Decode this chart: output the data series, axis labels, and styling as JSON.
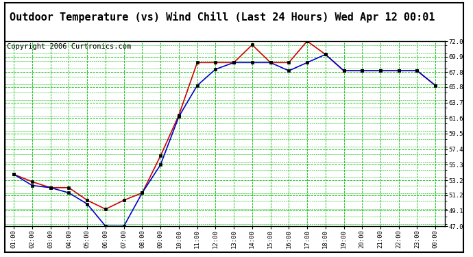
{
  "title": "Outdoor Temperature (vs) Wind Chill (Last 24 Hours) Wed Apr 12 00:01",
  "copyright": "Copyright 2006 Curtronics.com",
  "x_labels": [
    "01:00",
    "02:00",
    "03:00",
    "04:00",
    "05:00",
    "06:00",
    "07:00",
    "08:00",
    "09:00",
    "10:00",
    "11:00",
    "12:00",
    "13:00",
    "14:00",
    "15:00",
    "16:00",
    "17:00",
    "18:00",
    "19:00",
    "20:00",
    "21:00",
    "22:00",
    "23:00",
    "00:00"
  ],
  "temp_red": [
    54.0,
    53.0,
    52.2,
    52.2,
    50.5,
    49.3,
    50.5,
    51.5,
    56.5,
    62.0,
    69.1,
    69.1,
    69.1,
    71.5,
    69.1,
    69.1,
    72.0,
    70.2,
    68.0,
    68.0,
    68.0,
    68.0,
    68.0,
    66.0
  ],
  "wind_blue": [
    54.0,
    52.5,
    52.2,
    51.5,
    50.0,
    47.0,
    47.0,
    51.5,
    55.3,
    61.8,
    66.0,
    68.2,
    69.1,
    69.1,
    69.1,
    68.0,
    69.1,
    70.2,
    68.0,
    68.0,
    68.0,
    68.0,
    68.0,
    66.0
  ],
  "ylim": [
    47.0,
    72.0
  ],
  "yticks": [
    47.0,
    49.1,
    51.2,
    53.2,
    55.3,
    57.4,
    59.5,
    61.6,
    63.7,
    65.8,
    67.8,
    69.9,
    72.0
  ],
  "bg_color": "#ffffff",
  "plot_bg": "#ffffff",
  "grid_color": "#00bb00",
  "red_color": "#cc0000",
  "blue_color": "#0000cc",
  "title_fontsize": 11,
  "copyright_fontsize": 7.5,
  "border_color": "#000000"
}
